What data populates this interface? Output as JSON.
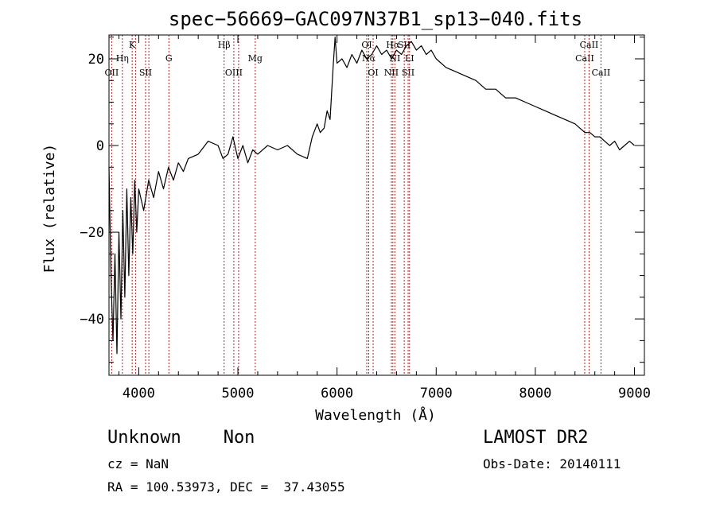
{
  "chart_data": {
    "type": "line",
    "title": "spec−56669−GAC097N37B1_sp13−040.fits",
    "xlabel": "Wavelength (Å)",
    "ylabel": "Flux (relative)",
    "xlim": [
      3700,
      9100
    ],
    "ylim": [
      -53,
      25.5
    ],
    "xticks": [
      4000,
      5000,
      6000,
      7000,
      8000,
      9000
    ],
    "yticks": [
      -40,
      -20,
      0,
      20
    ],
    "ytick_labels": [
      "−40",
      "−20",
      "0",
      "20"
    ],
    "x_minor_step": 200,
    "y_minor_step": 5,
    "series": [
      {
        "x": [
          3700,
          3720,
          3740,
          3760,
          3780,
          3800,
          3820,
          3840,
          3860,
          3880,
          3900,
          3920,
          3940,
          3960,
          3980,
          4000,
          4050,
          4100,
          4150,
          4200,
          4250,
          4300,
          4350,
          4400,
          4450,
          4500,
          4600,
          4700,
          4800,
          4850,
          4900,
          4950,
          5000,
          5050,
          5100,
          5150,
          5200,
          5300,
          5400,
          5500,
          5600,
          5700,
          5750,
          5800,
          5830,
          5870,
          5900,
          5930,
          5960,
          5980,
          6000,
          6050,
          6100,
          6150,
          6200,
          6250,
          6300,
          6350,
          6400,
          6450,
          6500,
          6550,
          6600,
          6650,
          6700,
          6750,
          6800,
          6850,
          6900,
          6950,
          7000,
          7100,
          7200,
          7300,
          7400,
          7500,
          7600,
          7700,
          7800,
          7900,
          8000,
          8100,
          8200,
          8300,
          8400,
          8500,
          8550,
          8600,
          8650,
          8700,
          8750,
          8800,
          8850,
          8900,
          8950,
          9000
        ],
        "y": [
          -5,
          -30,
          -45,
          -25,
          -48,
          -20,
          -40,
          -15,
          -35,
          -10,
          -30,
          -12,
          -25,
          -8,
          -20,
          -10,
          -15,
          -8,
          -12,
          -6,
          -10,
          -5,
          -8,
          -4,
          -6,
          -3,
          -2,
          1,
          0,
          -3,
          -2,
          2,
          -3,
          0,
          -4,
          -1,
          -2,
          0,
          -1,
          0,
          -2,
          -3,
          2,
          5,
          3,
          4,
          8,
          6,
          18,
          25,
          19,
          20,
          18,
          21,
          19,
          22,
          20,
          21,
          23,
          21,
          22,
          20,
          22,
          21,
          23,
          24,
          22,
          23,
          21,
          22,
          20,
          18,
          17,
          16,
          15,
          13,
          13,
          11,
          11,
          10,
          9,
          8,
          7,
          6,
          5,
          3,
          3,
          2,
          2,
          1,
          0,
          1,
          -1,
          0,
          1,
          0
        ]
      }
    ],
    "lines": [
      {
        "x": 3727,
        "label": "OII",
        "row": 3
      },
      {
        "x": 3835,
        "label": "Hη",
        "row": 2
      },
      {
        "x": 3934,
        "label": "K",
        "row": 1
      },
      {
        "x": 3968,
        "label": "",
        "row": 0
      },
      {
        "x": 4069,
        "label": "SII",
        "row": 3
      },
      {
        "x": 4102,
        "label": "",
        "row": 0
      },
      {
        "x": 4304,
        "label": "G",
        "row": 2
      },
      {
        "x": 4861,
        "label": "Hβ",
        "row": 1
      },
      {
        "x": 4959,
        "label": "OIII",
        "row": 3
      },
      {
        "x": 5007,
        "label": "",
        "row": 0
      },
      {
        "x": 5175,
        "label": "Mg",
        "row": 2
      },
      {
        "x": 6300,
        "label": "OI",
        "row": 1
      },
      {
        "x": 6320,
        "label": "Nα",
        "row": 2
      },
      {
        "x": 6364,
        "label": "OI",
        "row": 3
      },
      {
        "x": 6548,
        "label": "NII",
        "row": 3
      },
      {
        "x": 6563,
        "label": "Hα",
        "row": 1
      },
      {
        "x": 6583,
        "label": "NI",
        "row": 2
      },
      {
        "x": 6678,
        "label": "SII",
        "row": 1
      },
      {
        "x": 6717,
        "label": "SII",
        "row": 3
      },
      {
        "x": 6731,
        "label": "LI",
        "row": 2
      },
      {
        "x": 8498,
        "label": "CaII",
        "row": 2
      },
      {
        "x": 8542,
        "label": "CaII",
        "row": 1
      },
      {
        "x": 8662,
        "label": "CaII",
        "row": 3
      }
    ]
  },
  "footer": {
    "object_class": "Unknown    Non",
    "cz": "cz = NaN",
    "coords": "RA = 100.53973, DEC =  37.43055",
    "survey": "LAMOST DR2",
    "obs_date": "Obs-Date: 20140111"
  }
}
